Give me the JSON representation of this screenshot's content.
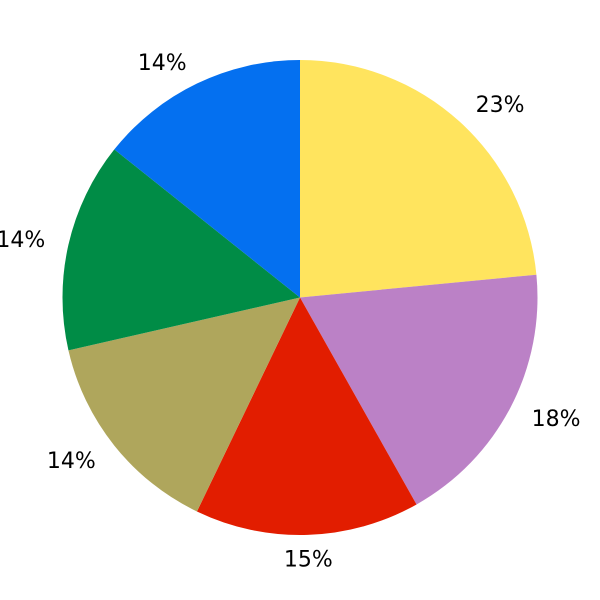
{
  "chart_data": {
    "type": "pie",
    "title": "",
    "legend": false,
    "start_angle": 90,
    "direction": "clockwise",
    "label_distance": 1.1,
    "label_color": "#000000",
    "background_color": "#FFFFFF",
    "slices": [
      {
        "label": "23%",
        "value": 23,
        "color": "#FFE45E"
      },
      {
        "label": "18%",
        "value": 18,
        "color": "#BB81C6"
      },
      {
        "label": "15%",
        "value": 15,
        "color": "#E21D00"
      },
      {
        "label": "14%",
        "value": 14,
        "color": "#AFA65C"
      },
      {
        "label": "14%",
        "value": 14,
        "color": "#008C46"
      },
      {
        "label": "14%",
        "value": 14,
        "color": "#0470F0"
      }
    ]
  }
}
